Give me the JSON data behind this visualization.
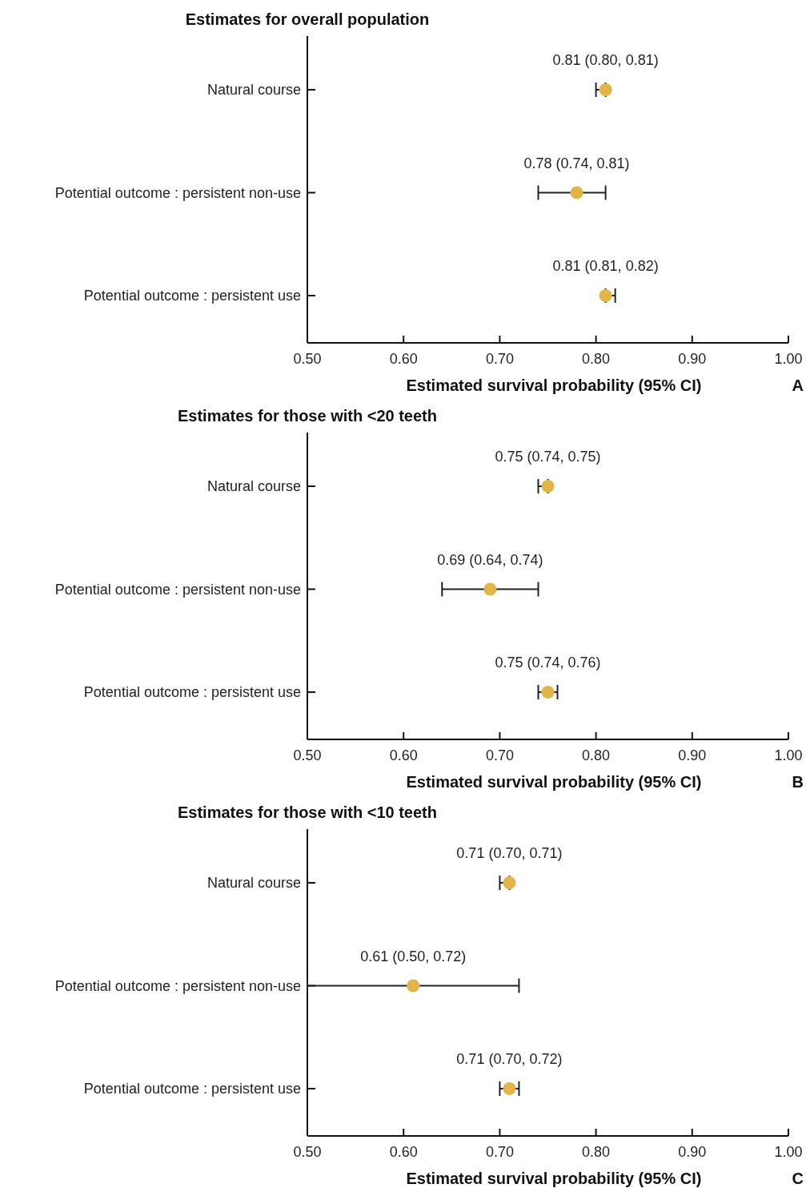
{
  "chart_data": [
    {
      "type": "scatter",
      "orientation": "horizontal",
      "title": "Estimates for overall population",
      "xlabel": "Estimated survival probability (95% CI)",
      "categories": [
        "Natural course",
        "Potential outcome : persistent non-use",
        "Potential outcome : persistent use"
      ],
      "values": [
        0.81,
        0.78,
        0.81
      ],
      "errors": [
        [
          0.8,
          0.81
        ],
        [
          0.74,
          0.81
        ],
        [
          0.81,
          0.82
        ]
      ],
      "value_labels": [
        "0.81 (0.80, 0.81)",
        "0.78 (0.74, 0.81)",
        "0.81 (0.81, 0.82)"
      ],
      "color": "#e3b448",
      "marker": "circle",
      "xlim": [
        0.5,
        1.0
      ],
      "xticks": [
        {
          "value": 0.5,
          "label": "0.50"
        },
        {
          "value": 0.6,
          "label": "0.60"
        },
        {
          "value": 0.7,
          "label": "0.70"
        },
        {
          "value": 0.8,
          "label": "0.80"
        },
        {
          "value": 0.9,
          "label": "0.90"
        },
        {
          "value": 1.0,
          "label": "1.00"
        }
      ],
      "annotations": [
        "A"
      ]
    },
    {
      "type": "scatter",
      "orientation": "horizontal",
      "title": "Estimates for those with <20 teeth",
      "xlabel": "Estimated survival probability (95% CI)",
      "categories": [
        "Natural course",
        "Potential outcome : persistent non-use",
        "Potential outcome : persistent use"
      ],
      "values": [
        0.75,
        0.69,
        0.75
      ],
      "errors": [
        [
          0.74,
          0.75
        ],
        [
          0.64,
          0.74
        ],
        [
          0.74,
          0.76
        ]
      ],
      "value_labels": [
        "0.75 (0.74, 0.75)",
        "0.69 (0.64, 0.74)",
        "0.75 (0.74, 0.76)"
      ],
      "color": "#e3b448",
      "marker": "circle",
      "xlim": [
        0.5,
        1.0
      ],
      "xticks": [
        {
          "value": 0.5,
          "label": "0.50"
        },
        {
          "value": 0.6,
          "label": "0.60"
        },
        {
          "value": 0.7,
          "label": "0.70"
        },
        {
          "value": 0.8,
          "label": "0.80"
        },
        {
          "value": 0.9,
          "label": "0.90"
        },
        {
          "value": 1.0,
          "label": "1.00"
        }
      ],
      "annotations": [
        "B"
      ]
    },
    {
      "type": "scatter",
      "orientation": "horizontal",
      "title": "Estimates for those with <10 teeth",
      "xlabel": "Estimated survival probability (95% CI)",
      "categories": [
        "Natural course",
        "Potential outcome : persistent non-use",
        "Potential outcome : persistent use"
      ],
      "values": [
        0.71,
        0.61,
        0.71
      ],
      "errors": [
        [
          0.7,
          0.71
        ],
        [
          0.5,
          0.72
        ],
        [
          0.7,
          0.72
        ]
      ],
      "value_labels": [
        "0.71 (0.70, 0.71)",
        "0.61 (0.50, 0.72)",
        "0.71 (0.70, 0.72)"
      ],
      "color": "#e3b448",
      "marker": "circle",
      "xlim": [
        0.5,
        1.0
      ],
      "xticks": [
        {
          "value": 0.5,
          "label": "0.50"
        },
        {
          "value": 0.6,
          "label": "0.60"
        },
        {
          "value": 0.7,
          "label": "0.70"
        },
        {
          "value": 0.8,
          "label": "0.80"
        },
        {
          "value": 0.9,
          "label": "0.90"
        },
        {
          "value": 1.0,
          "label": "1.00"
        }
      ],
      "annotations": [
        "C"
      ]
    }
  ]
}
